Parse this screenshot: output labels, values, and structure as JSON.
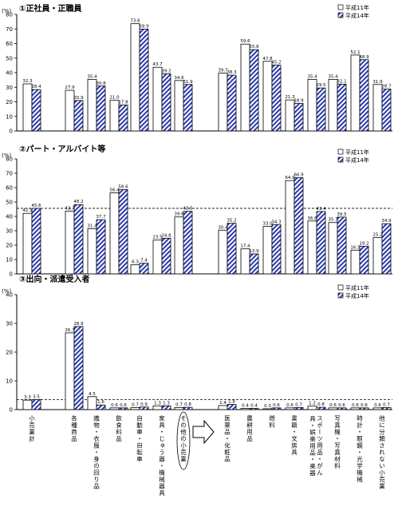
{
  "chart_data": {
    "type": "bar",
    "legend_position": "top-right",
    "series": [
      {
        "name": "平成11年",
        "pattern": "white"
      },
      {
        "name": "平成14年",
        "pattern": "blue-hatch"
      }
    ],
    "categories": [
      "小売業計",
      "各種商品",
      "織物・衣服・身の回り品",
      "飲食料品",
      "自動車・自転車",
      "家具・じゅう器・機械器具",
      "その他の小売業",
      "医薬品・化粧品",
      "農耕用品",
      "燃料",
      "書籍・文房具",
      "スポーツ用品・がん具・娯楽用品・楽器",
      "写真機・写真材料",
      "時計・眼鏡・光学機械",
      "他に分類されない小売業"
    ],
    "arrow_note": "その他の小売業",
    "panels": [
      {
        "title": "①正社員・正職員",
        "ylabel": "(%)",
        "ylim": [
          0,
          80
        ],
        "yticks": [
          0,
          10,
          20,
          30,
          40,
          50,
          60,
          70,
          80
        ],
        "reference_line": null,
        "values_h11": [
          32.3,
          27.9,
          35.4,
          21.0,
          73.6,
          43.7,
          34.6,
          39.7,
          59.6,
          47.8,
          21.3,
          35.4,
          35.4,
          52.1,
          31.9
        ],
        "values_h14": [
          28.4,
          20.9,
          30.8,
          17.8,
          69.9,
          39.2,
          31.9,
          38.3,
          55.8,
          45.2,
          18.9,
          29.5,
          32.1,
          48.9,
          28.7
        ]
      },
      {
        "title": "②パート・アルバイト等",
        "ylabel": "(%)",
        "ylim": [
          0,
          80
        ],
        "yticks": [
          0,
          10,
          20,
          30,
          40,
          50,
          60,
          70,
          80
        ],
        "reference_line": 45.6,
        "values_h11": [
          42.1,
          43.7,
          31.4,
          56.4,
          6.3,
          23.5,
          39.6,
          30.4,
          17.4,
          33.0,
          64.9,
          36.8,
          35.7,
          16.5,
          25.2
        ],
        "values_h14": [
          45.6,
          48.2,
          37.7,
          58.6,
          7.4,
          24.8,
          43.5,
          35.2,
          13.9,
          34.3,
          66.9,
          43.4,
          39.5,
          19.2,
          34.9
        ]
      },
      {
        "title": "③出向・派遣受入者",
        "ylabel": "(%)",
        "ylim": [
          0,
          40
        ],
        "yticks": [
          0,
          10,
          20,
          30,
          40
        ],
        "reference_line": 3.5,
        "values_h11": [
          3.3,
          26.7,
          4.5,
          0.6,
          0.7,
          1.3,
          0.7,
          1.4,
          0.4,
          0.3,
          0.6,
          1.2,
          0.6,
          0.6,
          0.6
        ],
        "values_h14": [
          3.5,
          28.9,
          1.6,
          0.6,
          0.9,
          1.3,
          0.8,
          1.8,
          0.4,
          0.6,
          0.7,
          0.8,
          0.6,
          0.6,
          0.7
        ]
      }
    ]
  }
}
